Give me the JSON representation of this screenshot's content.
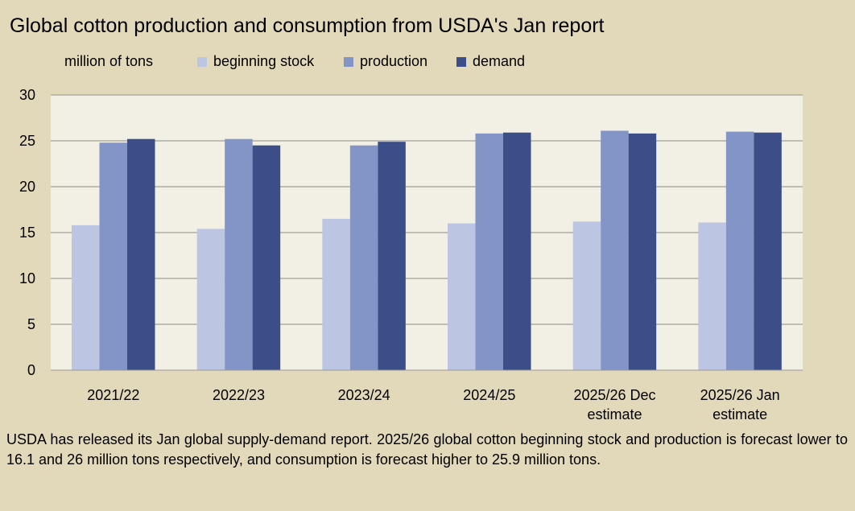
{
  "chart_data": {
    "type": "bar",
    "title": "Global cotton production and consumption from USDA's Jan report",
    "ylabel": "million of tons",
    "ylim": [
      0,
      30
    ],
    "yticks": [
      0,
      5,
      10,
      15,
      20,
      25,
      30
    ],
    "grid": true,
    "legend_position": "top",
    "categories": [
      "2021/22",
      "2022/23",
      "2023/24",
      "2024/25",
      "2025/26 Dec estimate",
      "2025/26 Jan estimate"
    ],
    "series": [
      {
        "name": "beginning stock",
        "color": "#bcc5e1",
        "values": [
          15.8,
          15.4,
          16.5,
          16.0,
          16.2,
          16.1
        ]
      },
      {
        "name": "production",
        "color": "#8395c7",
        "values": [
          24.8,
          25.2,
          24.5,
          25.8,
          26.1,
          26.0
        ]
      },
      {
        "name": "demand",
        "color": "#3c4e88",
        "values": [
          25.2,
          24.5,
          24.9,
          25.9,
          25.8,
          25.9
        ]
      }
    ]
  },
  "note": "USDA has released its Jan global supply-demand report. 2025/26 global cotton beginning stock and production is forecast lower to 16.1 and 26 million tons respectively, and consumption is forecast higher to 25.9 million tons."
}
